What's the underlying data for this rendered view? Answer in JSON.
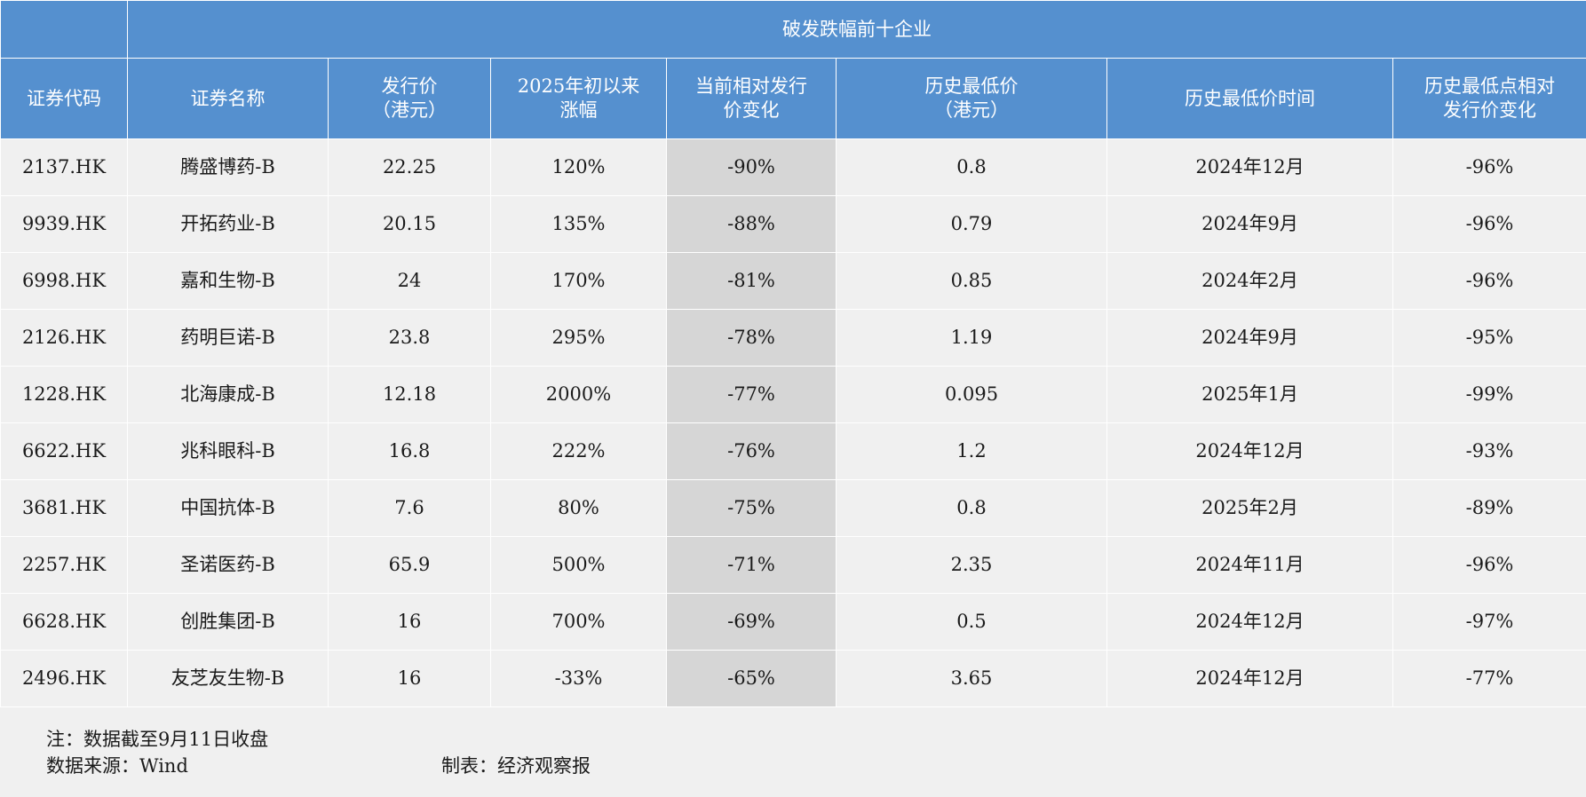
{
  "table": {
    "group_title": "破发跌幅前十企业",
    "headers": [
      [
        "证券代码"
      ],
      [
        "证券名称"
      ],
      [
        "发行价",
        "（港元）"
      ],
      [
        "2025年初以来",
        "涨幅"
      ],
      [
        "当前相对发行",
        "价变化"
      ],
      [
        "历史最低价",
        "（港元）"
      ],
      [
        "历史最低价时间"
      ],
      [
        "历史最低点相对",
        "发行价变化"
      ]
    ],
    "rows": [
      [
        "2137.HK",
        "腾盛博药-B",
        "22.25",
        "120%",
        "-90%",
        "0.8",
        "2024年12月",
        "-96%"
      ],
      [
        "9939.HK",
        "开拓药业-B",
        "20.15",
        "135%",
        "-88%",
        "0.79",
        "2024年9月",
        "-96%"
      ],
      [
        "6998.HK",
        "嘉和生物-B",
        "24",
        "170%",
        "-81%",
        "0.85",
        "2024年2月",
        "-96%"
      ],
      [
        "2126.HK",
        "药明巨诺-B",
        "23.8",
        "295%",
        "-78%",
        "1.19",
        "2024年9月",
        "-95%"
      ],
      [
        "1228.HK",
        "北海康成-B",
        "12.18",
        "2000%",
        "-77%",
        "0.095",
        "2025年1月",
        "-99%"
      ],
      [
        "6622.HK",
        "兆科眼科-B",
        "16.8",
        "222%",
        "-76%",
        "1.2",
        "2024年12月",
        "-93%"
      ],
      [
        "3681.HK",
        "中国抗体-B",
        "7.6",
        "80%",
        "-75%",
        "0.8",
        "2025年2月",
        "-89%"
      ],
      [
        "2257.HK",
        "圣诺医药-B",
        "65.9",
        "500%",
        "-71%",
        "2.35",
        "2024年11月",
        "-96%"
      ],
      [
        "6628.HK",
        "创胜集团-B",
        "16",
        "700%",
        "-69%",
        "0.5",
        "2024年12月",
        "-97%"
      ],
      [
        "2496.HK",
        "友芝友生物-B",
        "16",
        "-33%",
        "-65%",
        "3.65",
        "2024年12月",
        "-77%"
      ]
    ]
  },
  "notes": {
    "note": "注：数据截至9月11日收盘",
    "source": "数据来源：Wind",
    "credit": "制表：经济观察报"
  },
  "colors": {
    "header_bg": "#5590cf",
    "highlight_col_bg": "#d6d6d6",
    "body_bg": "#f0f0f0"
  }
}
